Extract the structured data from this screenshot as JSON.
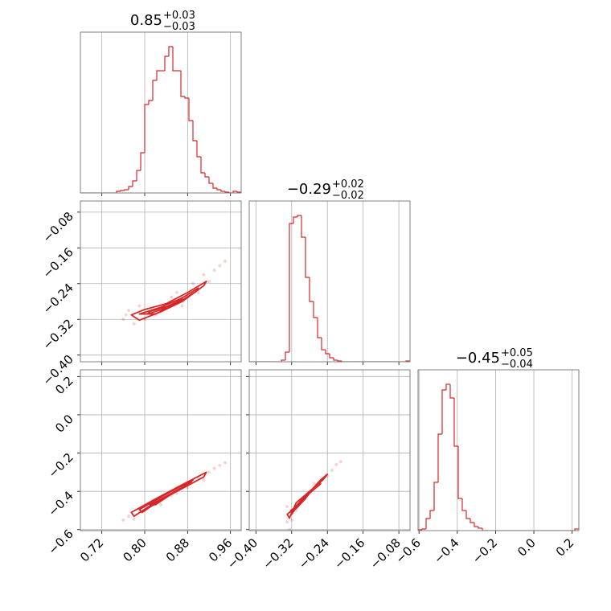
{
  "chart_data": {
    "type": "corner",
    "color": "#d62728",
    "grid": true,
    "hist_ylim": [
      0,
      200
    ],
    "params": [
      {
        "title": {
          "value": "0.85",
          "upper": "+0.03",
          "lower": "−0.03"
        },
        "lim": [
          0.68,
          0.98
        ],
        "ticks": [
          0.72,
          {
            "value": 0.8,
            "label": "0.80"
          },
          0.88,
          0.96
        ],
        "bins": [
          0.68,
          0.6875,
          0.695,
          0.7025,
          0.71,
          0.7175,
          0.725,
          0.7325,
          0.74,
          0.7475,
          0.755,
          0.7625,
          0.77,
          0.7775,
          0.785,
          0.7925,
          0.8,
          0.8075,
          0.815,
          0.8225,
          0.83,
          0.8375,
          0.845,
          0.8525,
          0.86,
          0.8675,
          0.875,
          0.8825,
          0.89,
          0.8975,
          0.905,
          0.9125,
          0.92,
          0.9275,
          0.935,
          0.9425,
          0.95,
          0.9575,
          0.965,
          0.9725,
          0.98
        ],
        "counts": [
          0,
          0,
          0,
          0,
          0,
          0,
          0,
          0,
          0,
          2,
          3,
          4,
          8,
          15,
          28,
          50,
          110,
          115,
          140,
          152,
          152,
          170,
          182,
          152,
          152,
          120,
          118,
          90,
          65,
          45,
          25,
          20,
          12,
          6,
          4,
          2,
          1,
          0,
          2,
          1
        ]
      },
      {
        "title": {
          "value": "−0.29",
          "upper": "+0.02",
          "lower": "−0.02"
        },
        "lim": [
          -0.415,
          -0.055
        ],
        "ticks": [
          {
            "value": -0.4,
            "label": "−0.40"
          },
          {
            "value": -0.32,
            "label": "−0.32"
          },
          {
            "value": -0.24,
            "label": "−0.24"
          },
          {
            "value": -0.16,
            "label": "−0.16"
          },
          {
            "value": -0.08,
            "label": "−0.08"
          }
        ],
        "bins": [
          -0.415,
          -0.406,
          -0.397,
          -0.388,
          -0.379,
          -0.37,
          -0.361,
          -0.352,
          -0.343,
          -0.334,
          -0.325,
          -0.316,
          -0.307,
          -0.298,
          -0.289,
          -0.28,
          -0.271,
          -0.262,
          -0.253,
          -0.244,
          -0.235,
          -0.226,
          -0.217,
          -0.208,
          -0.199,
          -0.19,
          -0.181,
          -0.172,
          -0.163,
          -0.154,
          -0.145,
          -0.136,
          -0.127,
          -0.118,
          -0.109,
          -0.1,
          -0.091,
          -0.082,
          -0.073,
          -0.064,
          -0.055
        ],
        "counts": [
          0,
          0,
          0,
          0,
          0,
          0,
          0,
          0,
          2,
          12,
          172,
          180,
          182,
          155,
          105,
          75,
          55,
          30,
          15,
          10,
          5,
          2,
          1,
          0,
          0,
          0,
          0,
          0,
          0,
          0,
          0,
          0,
          0,
          0,
          0,
          0,
          0,
          0,
          0,
          1
        ]
      },
      {
        "title": {
          "value": "−0.45",
          "upper": "+0.05",
          "lower": "−0.04"
        },
        "lim": [
          -0.605,
          0.235
        ],
        "ticks": [
          {
            "value": -0.6,
            "label": "−0.6"
          },
          {
            "value": -0.4,
            "label": "−0.4"
          },
          {
            "value": -0.2,
            "label": "−0.2"
          },
          {
            "value": 0.0,
            "label": "0.0"
          },
          0.2
        ],
        "bins": [
          -0.605,
          -0.584,
          -0.563,
          -0.542,
          -0.521,
          -0.5,
          -0.479,
          -0.458,
          -0.437,
          -0.416,
          -0.395,
          -0.374,
          -0.353,
          -0.332,
          -0.311,
          -0.29,
          -0.269,
          -0.248,
          -0.227,
          -0.206,
          -0.185,
          -0.164,
          -0.143,
          -0.122,
          -0.101,
          -0.08,
          -0.059,
          -0.038,
          -0.017,
          0.004,
          0.025,
          0.046,
          0.067,
          0.088,
          0.109,
          0.13,
          0.151,
          0.172,
          0.193,
          0.214,
          0.235
        ],
        "counts": [
          1,
          2,
          15,
          25,
          60,
          120,
          175,
          182,
          165,
          105,
          40,
          25,
          15,
          10,
          5,
          3,
          0,
          0,
          0,
          0,
          0,
          0,
          0,
          0,
          0,
          0,
          0,
          0,
          0,
          0,
          0,
          0,
          0,
          0,
          0,
          0,
          0,
          0,
          0,
          2
        ]
      }
    ],
    "pairs": [
      {
        "x_param": 0,
        "y_param": 1,
        "points": {
          "x": [
            0.76,
            0.765,
            0.78,
            0.79,
            0.82,
            0.85,
            0.87,
            0.89,
            0.91,
            0.92,
            0.93,
            0.94,
            0.95,
            0.88,
            0.8,
            0.77,
            0.9,
            0.86
          ],
          "y": [
            -0.32,
            -0.31,
            -0.33,
            -0.29,
            -0.31,
            -0.27,
            -0.29,
            -0.24,
            -0.22,
            -0.235,
            -0.21,
            -0.2,
            -0.19,
            -0.27,
            -0.32,
            -0.3,
            -0.26,
            -0.26
          ]
        },
        "contours": [
          {
            "x": [
              0.775,
              0.8,
              0.84,
              0.88,
              0.915,
              0.91,
              0.87,
              0.83,
              0.79
            ],
            "y": [
              -0.31,
              -0.298,
              -0.285,
              -0.26,
              -0.235,
              -0.245,
              -0.28,
              -0.303,
              -0.322
            ]
          },
          {
            "x": [
              0.79,
              0.83,
              0.87,
              0.9,
              0.895,
              0.86,
              0.82
            ],
            "y": [
              -0.308,
              -0.293,
              -0.272,
              -0.25,
              -0.258,
              -0.285,
              -0.308
            ]
          },
          {
            "x": [
              0.81,
              0.84,
              0.87,
              0.865,
              0.835,
              0.805
            ],
            "y": [
              -0.302,
              -0.292,
              -0.275,
              -0.28,
              -0.297,
              -0.308
            ]
          }
        ]
      },
      {
        "x_param": 0,
        "y_param": 2,
        "points": {
          "x": [
            0.76,
            0.77,
            0.78,
            0.8,
            0.83,
            0.86,
            0.88,
            0.9,
            0.92,
            0.93,
            0.94,
            0.95,
            0.79,
            0.91,
            0.85
          ],
          "y": [
            -0.55,
            -0.53,
            -0.545,
            -0.5,
            -0.47,
            -0.41,
            -0.38,
            -0.33,
            -0.3,
            -0.28,
            -0.265,
            -0.25,
            -0.51,
            -0.34,
            -0.42
          ]
        },
        "contours": [
          {
            "x": [
              0.775,
              0.82,
              0.87,
              0.915,
              0.91,
              0.86,
              0.81,
              0.78
            ],
            "y": [
              -0.51,
              -0.44,
              -0.365,
              -0.3,
              -0.325,
              -0.4,
              -0.475,
              -0.53
            ]
          },
          {
            "x": [
              0.79,
              0.84,
              0.89,
              0.885,
              0.835,
              0.795
            ],
            "y": [
              -0.495,
              -0.415,
              -0.34,
              -0.355,
              -0.435,
              -0.51
            ]
          },
          {
            "x": [
              0.81,
              0.85,
              0.87,
              0.86,
              0.82
            ],
            "y": [
              -0.47,
              -0.41,
              -0.38,
              -0.395,
              -0.47
            ]
          }
        ]
      },
      {
        "x_param": 1,
        "y_param": 2,
        "points": {
          "x": [
            -0.33,
            -0.32,
            -0.325,
            -0.31,
            -0.29,
            -0.26,
            -0.24,
            -0.23,
            -0.22,
            -0.21,
            -0.33,
            -0.27
          ],
          "y": [
            -0.56,
            -0.55,
            -0.6,
            -0.5,
            -0.44,
            -0.37,
            -0.32,
            -0.29,
            -0.26,
            -0.245,
            -0.48,
            -0.36
          ]
        },
        "contours": [
          {
            "x": [
              -0.325,
              -0.31,
              -0.28,
              -0.25,
              -0.24,
              -0.255,
              -0.29,
              -0.32,
              -0.33
            ],
            "y": [
              -0.54,
              -0.46,
              -0.4,
              -0.34,
              -0.31,
              -0.34,
              -0.43,
              -0.5,
              -0.52
            ]
          },
          {
            "x": [
              -0.32,
              -0.3,
              -0.27,
              -0.255,
              -0.28,
              -0.31,
              -0.322
            ],
            "y": [
              -0.52,
              -0.45,
              -0.39,
              -0.36,
              -0.41,
              -0.48,
              -0.5
            ]
          },
          {
            "x": [
              -0.318,
              -0.3,
              -0.28,
              -0.29,
              -0.31
            ],
            "y": [
              -0.5,
              -0.45,
              -0.41,
              -0.44,
              -0.49
            ]
          }
        ]
      }
    ]
  }
}
